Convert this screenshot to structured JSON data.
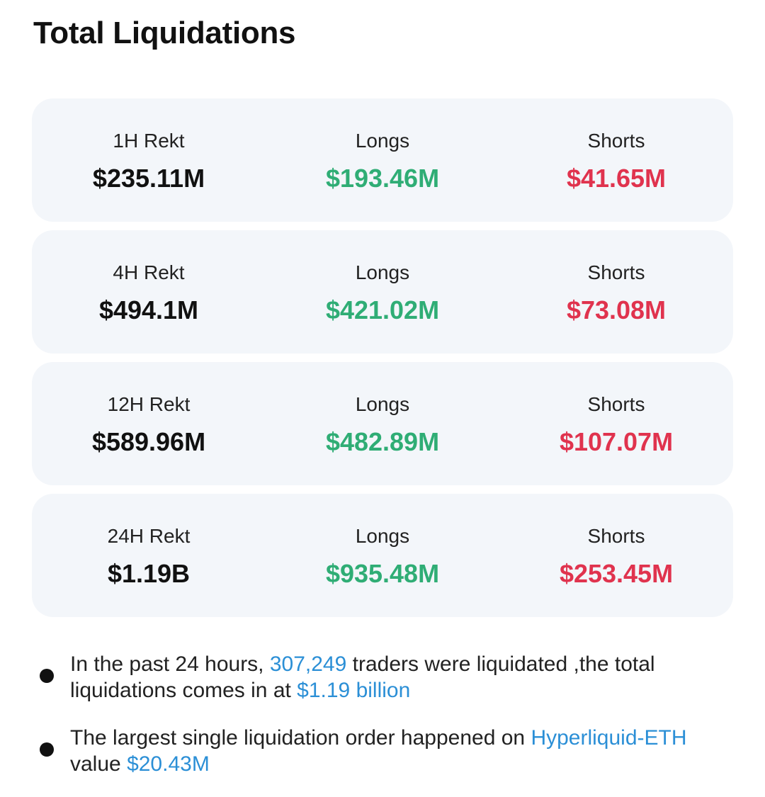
{
  "header": {
    "title": "Total Liquidations"
  },
  "periods": [
    {
      "label": "1H Rekt",
      "total": "$235.11M",
      "longs_label": "Longs",
      "longs": "$193.46M",
      "shorts_label": "Shorts",
      "shorts": "$41.65M"
    },
    {
      "label": "4H Rekt",
      "total": "$494.1M",
      "longs_label": "Longs",
      "longs": "$421.02M",
      "shorts_label": "Shorts",
      "shorts": "$73.08M"
    },
    {
      "label": "12H Rekt",
      "total": "$589.96M",
      "longs_label": "Longs",
      "longs": "$482.89M",
      "shorts_label": "Shorts",
      "shorts": "$107.07M"
    },
    {
      "label": "24H Rekt",
      "total": "$1.19B",
      "longs_label": "Longs",
      "longs": "$935.48M",
      "shorts_label": "Shorts",
      "shorts": "$253.45M"
    }
  ],
  "summary": {
    "line1": {
      "prefix": "In the past 24 hours, ",
      "traders": "307,249",
      "middle": " traders were liquidated ,the total liquidations comes in at ",
      "amount": "$1.19 billion"
    },
    "line2": {
      "prefix": "The largest single liquidation order happened on ",
      "market": "Hyperliquid-ETH",
      "middle": " value ",
      "amount": "$20.43M"
    }
  },
  "colors": {
    "longs": "#2fad75",
    "shorts": "#e0334e",
    "link": "#2b8fd6",
    "card_bg": "#f3f6fa"
  }
}
